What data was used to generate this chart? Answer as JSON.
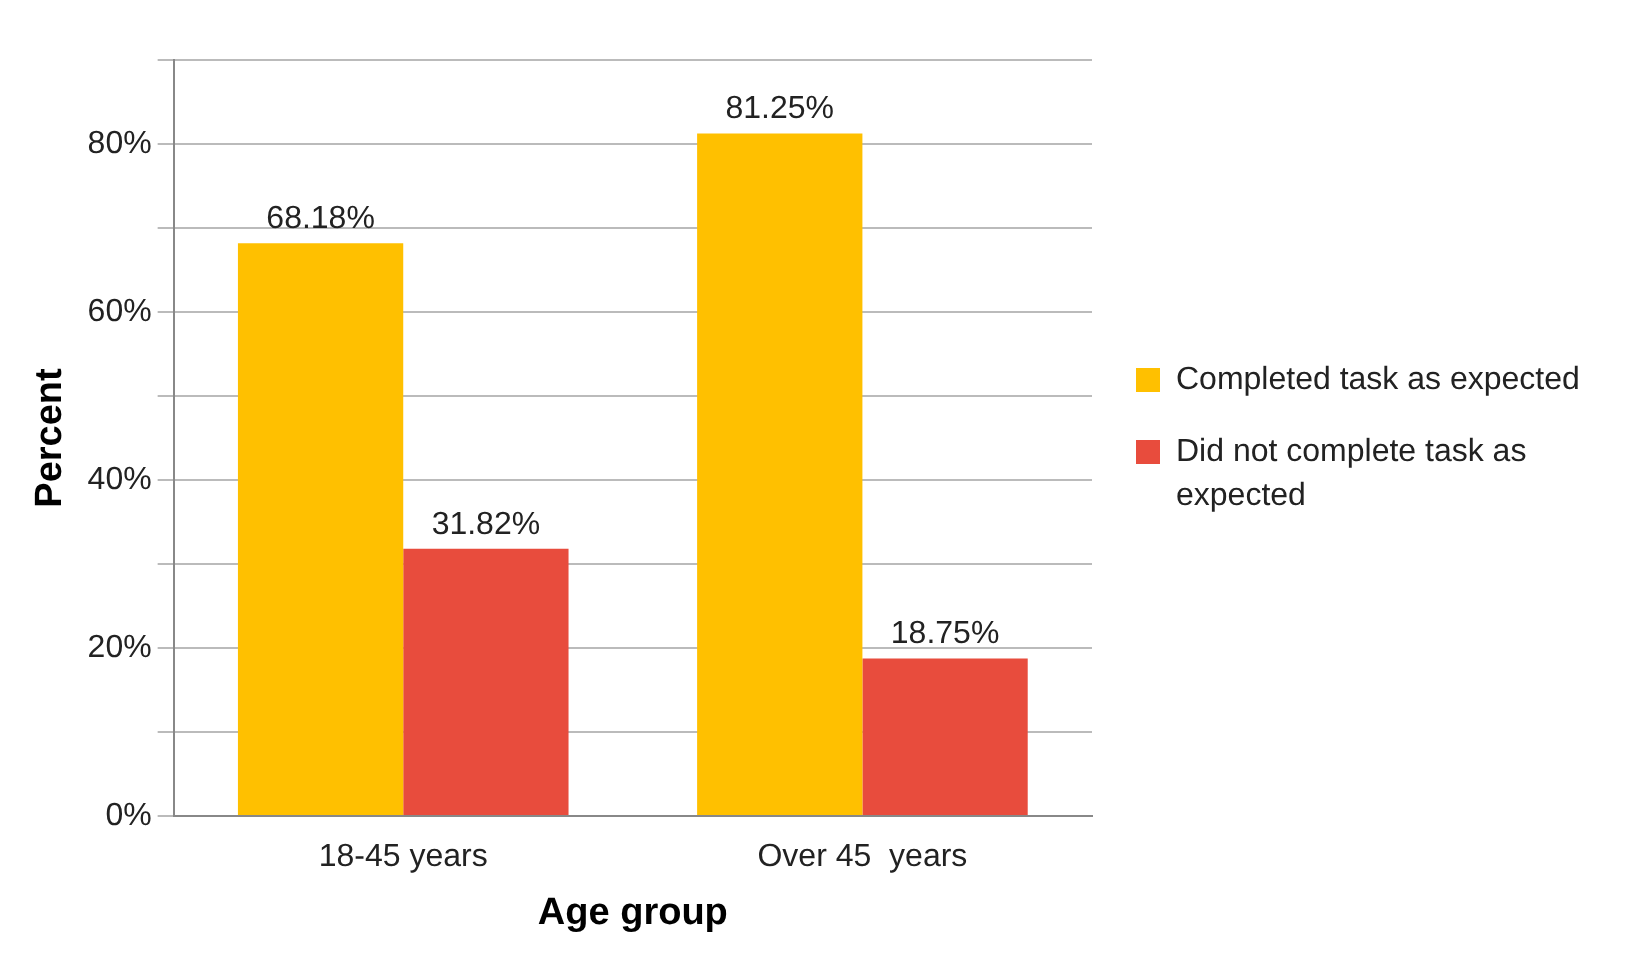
{
  "chart_data": {
    "type": "bar",
    "xlabel": "Age group",
    "ylabel": "Percent",
    "categories": [
      "18-45 years",
      "Over 45  years"
    ],
    "series": [
      {
        "name": "Completed task as expected",
        "color": "#ffc000",
        "values": [
          68.18,
          81.25
        ]
      },
      {
        "name": "Did not complete task as expected",
        "color": "#e84c3d",
        "values": [
          31.82,
          18.75
        ]
      }
    ],
    "ylim": [
      0,
      90
    ],
    "yticks": [
      {
        "value": 0,
        "label": "0%"
      },
      {
        "value": 10,
        "label": null
      },
      {
        "value": 20,
        "label": "20%"
      },
      {
        "value": 30,
        "label": null
      },
      {
        "value": 40,
        "label": "40%"
      },
      {
        "value": 50,
        "label": null
      },
      {
        "value": 60,
        "label": "60%"
      },
      {
        "value": 70,
        "label": null
      },
      {
        "value": 80,
        "label": "80%"
      },
      {
        "value": 90,
        "label": null
      }
    ],
    "value_labels": [
      [
        "68.18%",
        "81.25%"
      ],
      [
        "31.82%",
        "18.75%"
      ]
    ],
    "grid": "y",
    "legend": "right"
  }
}
